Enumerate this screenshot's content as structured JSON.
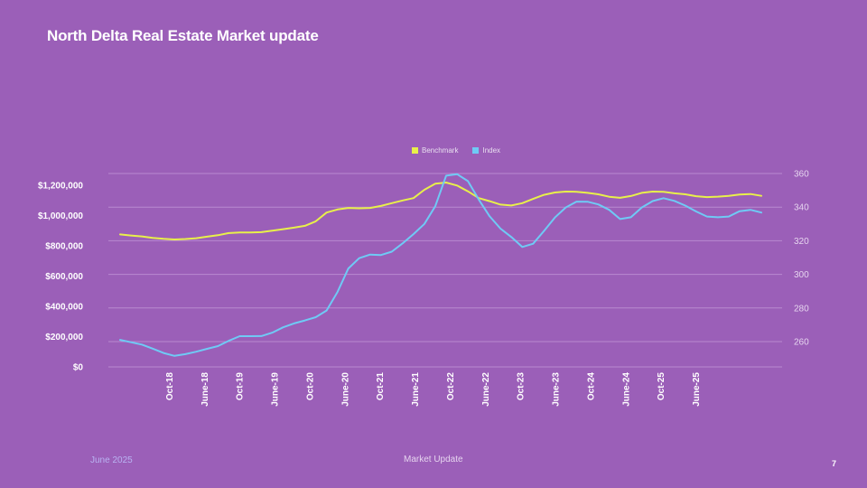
{
  "slide": {
    "title": "North Delta Real Estate Market update",
    "footer_date": "June 2025",
    "footer_center": "Market Update",
    "page_number": "7"
  },
  "colors": {
    "background": "#9b5fb8",
    "benchmark": "#e8f04a",
    "index": "#6fcaf5",
    "gridline": "#b98ad0",
    "axis_text": "#ffffff"
  },
  "chart_data": {
    "type": "line",
    "title": "",
    "legend": [
      "Benchmark",
      "Index"
    ],
    "legend_position": "top-center",
    "x_tick_labels": [
      "Oct-18",
      "June-18",
      "Oct-19",
      "June-19",
      "Oct-20",
      "June-20",
      "Oct-21",
      "June-21",
      "Oct-22",
      "June-22",
      "Oct-23",
      "June-23",
      "Oct-24",
      "June-24",
      "Oct-25",
      "June-25"
    ],
    "y_left": {
      "range": [
        0,
        1250000
      ],
      "ticks": [
        0,
        200000,
        400000,
        600000,
        800000,
        1000000,
        1200000
      ],
      "tick_labels": [
        "$0",
        "$200,000",
        "$400,000",
        "$600,000",
        "$800,000",
        "$1,000,000",
        "$1,200,000"
      ]
    },
    "y_right": {
      "range": [
        245,
        365
      ],
      "ticks": [
        260,
        280,
        300,
        320,
        340,
        360
      ],
      "tick_labels": [
        "260",
        "280",
        "300",
        "320",
        "340",
        "360"
      ]
    },
    "series": [
      {
        "name": "Benchmark",
        "axis": "left",
        "values": [
          875000,
          868000,
          862000,
          852000,
          846000,
          842000,
          845000,
          850000,
          860000,
          870000,
          884000,
          888000,
          888000,
          890000,
          900000,
          910000,
          920000,
          932000,
          962000,
          1020000,
          1040000,
          1050000,
          1048000,
          1050000,
          1063000,
          1082000,
          1100000,
          1115000,
          1170000,
          1210000,
          1218000,
          1198000,
          1160000,
          1115000,
          1095000,
          1072000,
          1066000,
          1082000,
          1110000,
          1137000,
          1152000,
          1158000,
          1157000,
          1150000,
          1140000,
          1124000,
          1117000,
          1129000,
          1150000,
          1158000,
          1157000,
          1147000,
          1140000,
          1128000,
          1122000,
          1125000,
          1130000,
          1139000,
          1142000,
          1130000
        ]
      },
      {
        "name": "Index",
        "axis": "right",
        "values": [
          261,
          259.6,
          258.2,
          255.8,
          253.2,
          251.5,
          252.5,
          254,
          255.7,
          257.3,
          260.5,
          263.2,
          263.2,
          263.3,
          265.3,
          268.5,
          270.8,
          272.6,
          274.5,
          278.5,
          289.5,
          303.5,
          309.6,
          311.8,
          311.5,
          313.5,
          318.5,
          324,
          330,
          340.6,
          358.7,
          359.6,
          355.5,
          344.5,
          334.5,
          327.2,
          322.2,
          316.3,
          318.2,
          325.8,
          333.8,
          339.8,
          343.3,
          343.2,
          341.6,
          338.4,
          332.9,
          334,
          339.8,
          343.6,
          345.3,
          343.7,
          340.9,
          337.4,
          334.4,
          334,
          334.4,
          337.6,
          338.4,
          336.8
        ]
      }
    ]
  }
}
